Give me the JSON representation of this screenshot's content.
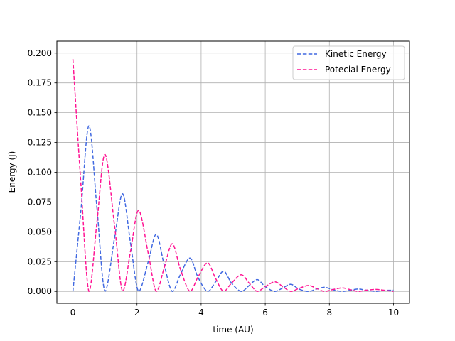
{
  "chart_data": {
    "type": "line",
    "title": "",
    "xlabel": "time (AU)",
    "ylabel": "Energy (J)",
    "xlim": [
      -0.5,
      10.5
    ],
    "ylim": [
      -0.01,
      0.21
    ],
    "xticks": [
      0,
      2,
      4,
      6,
      8,
      10
    ],
    "xtick_labels": [
      "0",
      "2",
      "4",
      "6",
      "8",
      "10"
    ],
    "yticks": [
      0.0,
      0.025,
      0.05,
      0.075,
      0.1,
      0.125,
      0.15,
      0.175,
      0.2
    ],
    "ytick_labels": [
      "0.000",
      "0.025",
      "0.050",
      "0.075",
      "0.100",
      "0.125",
      "0.150",
      "0.175",
      "0.200"
    ],
    "grid": true,
    "legend_position": "top-right",
    "series": [
      {
        "name": "Kinetic Energy",
        "color": "#4169e1",
        "linestyle": "dashed",
        "x": [
          0.0,
          0.25,
          0.5,
          0.75,
          1.0,
          1.3,
          1.55,
          1.8,
          2.05,
          2.35,
          2.6,
          2.85,
          3.1,
          3.35,
          3.65,
          3.9,
          4.2,
          4.45,
          4.7,
          4.95,
          5.25,
          5.5,
          5.75,
          6.0,
          6.3,
          6.55,
          6.8,
          7.05,
          7.35,
          7.6,
          7.85,
          8.1,
          8.4,
          8.65,
          8.9,
          9.15,
          9.45,
          9.7,
          10.0
        ],
        "y": [
          0.0,
          0.068,
          0.139,
          0.07,
          0.0,
          0.045,
          0.082,
          0.04,
          0.0,
          0.025,
          0.048,
          0.022,
          0.0,
          0.014,
          0.028,
          0.012,
          0.0,
          0.008,
          0.017,
          0.007,
          0.0,
          0.005,
          0.01,
          0.004,
          0.0,
          0.003,
          0.006,
          0.002,
          0.0,
          0.002,
          0.0035,
          0.0015,
          0.0,
          0.001,
          0.002,
          0.001,
          0.0,
          0.0008,
          0.001
        ]
      },
      {
        "name": "Potecial Energy",
        "color": "#ff1493",
        "linestyle": "dashed",
        "x": [
          0.0,
          0.25,
          0.5,
          0.75,
          1.0,
          1.3,
          1.55,
          1.8,
          2.05,
          2.35,
          2.6,
          2.85,
          3.1,
          3.35,
          3.65,
          3.9,
          4.2,
          4.45,
          4.7,
          4.95,
          5.25,
          5.5,
          5.75,
          6.0,
          6.3,
          6.55,
          6.8,
          7.05,
          7.35,
          7.6,
          7.85,
          8.1,
          8.4,
          8.65,
          8.9,
          9.15,
          9.45,
          9.7,
          10.0
        ],
        "y": [
          0.195,
          0.09,
          0.0,
          0.058,
          0.115,
          0.055,
          0.0,
          0.034,
          0.068,
          0.032,
          0.0,
          0.02,
          0.04,
          0.019,
          0.0,
          0.012,
          0.024,
          0.011,
          0.0,
          0.007,
          0.014,
          0.007,
          0.0,
          0.004,
          0.008,
          0.004,
          0.0,
          0.0025,
          0.005,
          0.0025,
          0.0,
          0.0015,
          0.003,
          0.0015,
          0.0,
          0.001,
          0.0017,
          0.001,
          0.0
        ]
      }
    ]
  }
}
